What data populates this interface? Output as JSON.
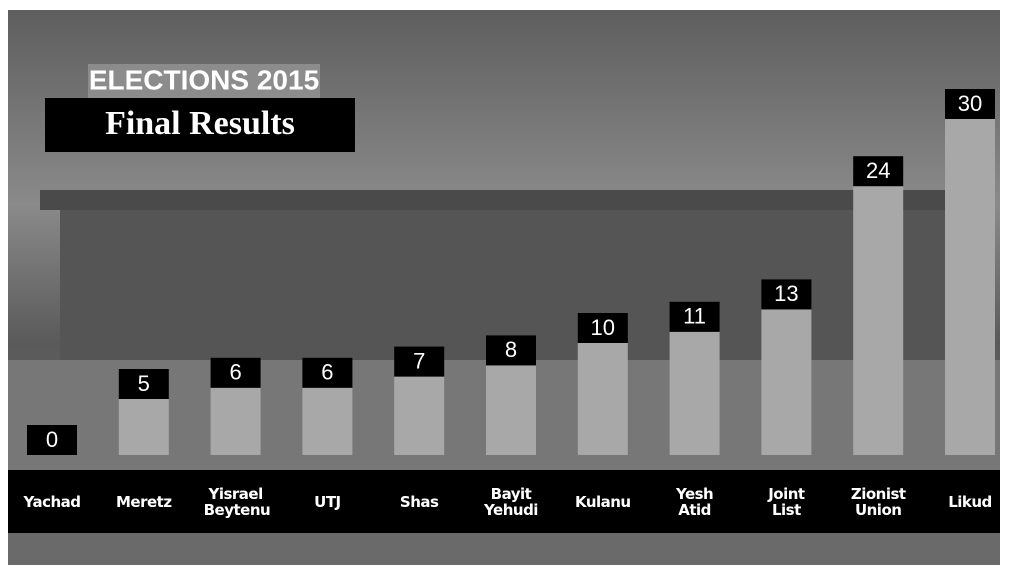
{
  "chart_data": {
    "type": "bar",
    "title": "ELECTIONS 2015",
    "subtitle": "Final Results",
    "categories": [
      "Yachad",
      "Meretz",
      "Yisrael Beytenu",
      "UTJ",
      "Shas",
      "Bayit Yehudi",
      "Kulanu",
      "Yesh Atid",
      "Joint List",
      "Zionist Union",
      "Likud"
    ],
    "values": [
      0,
      5,
      6,
      6,
      7,
      8,
      10,
      11,
      13,
      24,
      30
    ],
    "color": "#a8a8a8"
  }
}
